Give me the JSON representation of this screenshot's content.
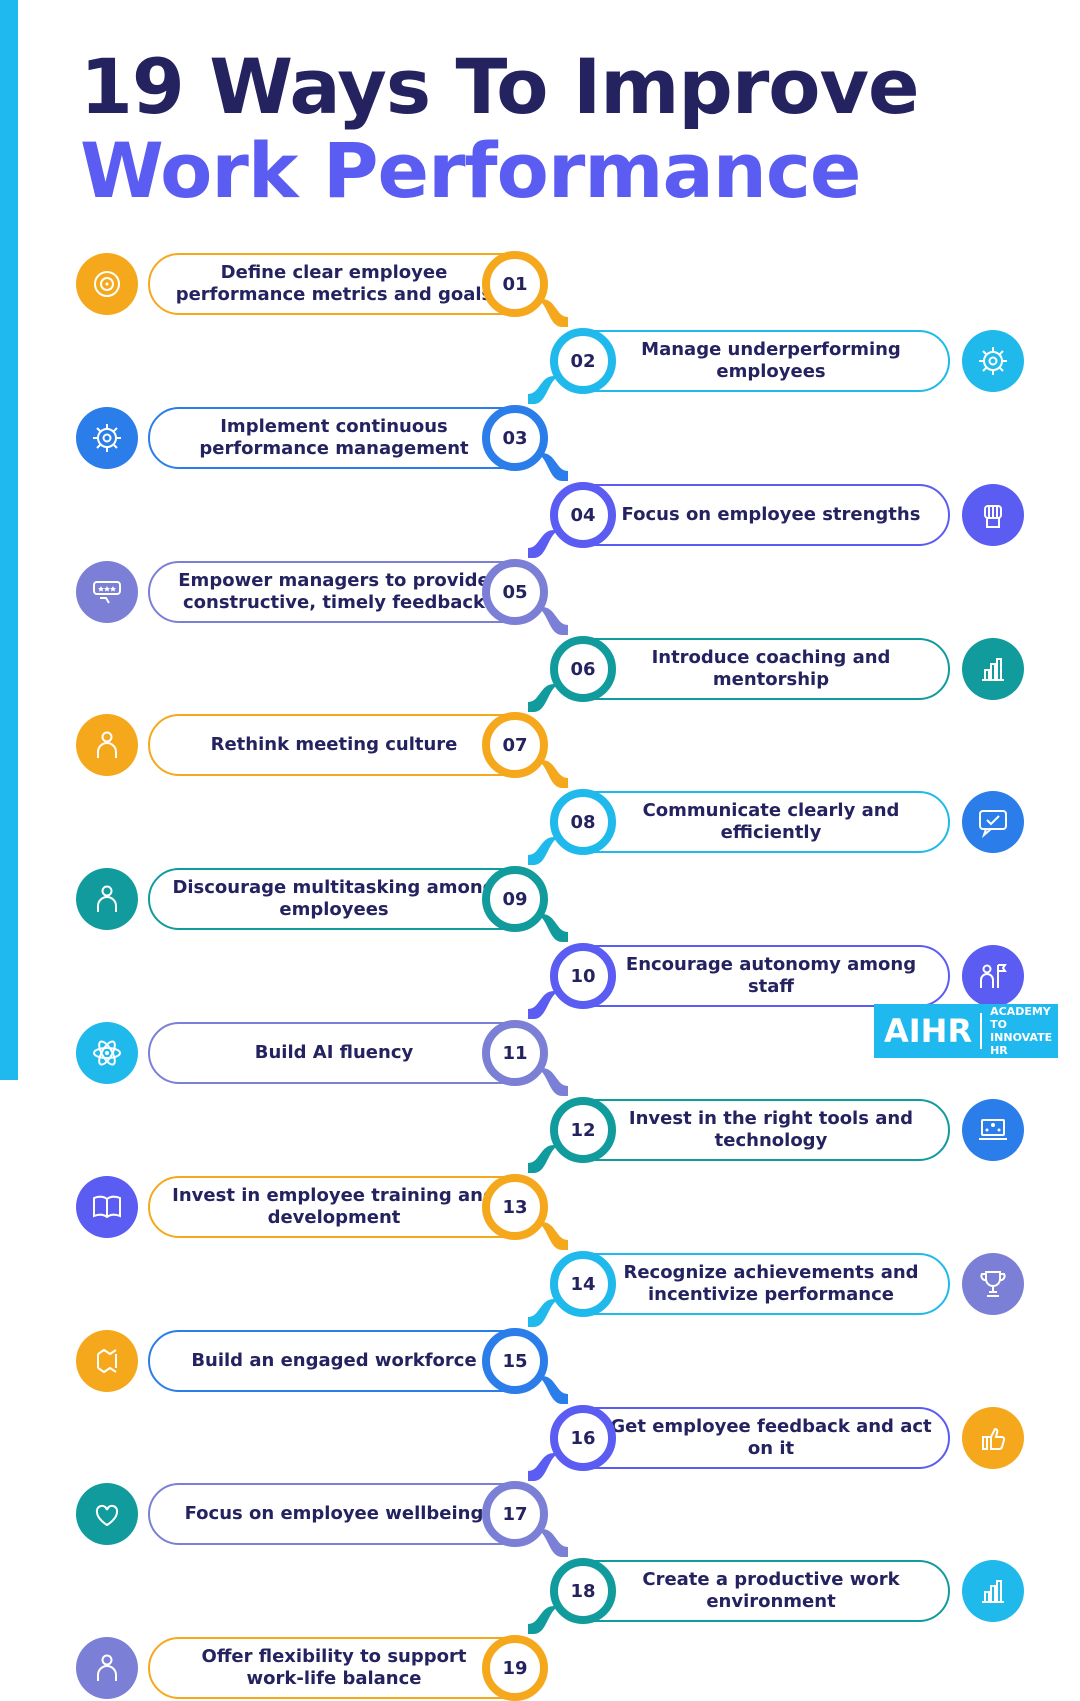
{
  "title": {
    "line1": "19 Ways To Improve",
    "line2": "Work Performance"
  },
  "items": [
    {
      "num": "01",
      "text": "Define clear employee performance metrics and goals",
      "color": "#f6a81d",
      "icon": "target-icon"
    },
    {
      "num": "02",
      "text": "Manage underperforming employees",
      "color": "#20b9ec",
      "icon": "gear-person-icon"
    },
    {
      "num": "03",
      "text": "Implement continuous performance management",
      "color": "#2b7de9",
      "icon": "gear-chart-icon"
    },
    {
      "num": "04",
      "text": "Focus on employee strengths",
      "color": "#5a5cf2",
      "icon": "fist-icon"
    },
    {
      "num": "05",
      "text": "Empower managers to provide constructive, timely feedback",
      "color": "#7b80d6",
      "icon": "rating-feedback-icon"
    },
    {
      "num": "06",
      "text": "Introduce coaching and mentorship",
      "color": "#129b9d",
      "icon": "coaching-stairs-icon"
    },
    {
      "num": "07",
      "text": "Rethink meeting culture",
      "color": "#f6a81d",
      "icon": "meeting-table-icon"
    },
    {
      "num": "08",
      "text": "Communicate clearly and efficiently",
      "color": "#20b9ec",
      "icon": "chat-check-icon"
    },
    {
      "num": "09",
      "text": "Discourage multitasking among employees",
      "color": "#129b9d",
      "icon": "multitask-person-icon"
    },
    {
      "num": "10",
      "text": "Encourage autonomy among staff",
      "color": "#5a5cf2",
      "icon": "person-flag-icon"
    },
    {
      "num": "11",
      "text": "Build AI fluency",
      "color": "#7b80d6",
      "icon": "atom-icon"
    },
    {
      "num": "12",
      "text": "Invest in the right tools and technology",
      "color": "#129b9d",
      "icon": "laptop-network-icon"
    },
    {
      "num": "13",
      "text": "Invest in employee training and development",
      "color": "#f6a81d",
      "icon": "book-icon"
    },
    {
      "num": "14",
      "text": "Recognize achievements and incentivize performance",
      "color": "#20b9ec",
      "icon": "trophy-icon"
    },
    {
      "num": "15",
      "text": "Build an engaged workforce",
      "color": "#2b7de9",
      "icon": "hands-together-icon"
    },
    {
      "num": "16",
      "text": "Get employee feedback and act on it",
      "color": "#5a5cf2",
      "icon": "thumbs-up-cycle-icon"
    },
    {
      "num": "17",
      "text": "Focus on employee wellbeing",
      "color": "#7b80d6",
      "icon": "heart-hands-icon"
    },
    {
      "num": "18",
      "text": "Create a productive work environment",
      "color": "#129b9d",
      "icon": "hand-chart-icon"
    },
    {
      "num": "19",
      "text": "Offer flexibility to support work-life balance",
      "color": "#f6a81d",
      "icon": "flexibility-person-icon"
    }
  ],
  "iconColors": [
    "#f6a81d",
    "#20b9ec",
    "#2b7de9",
    "#5a5cf2",
    "#7b80d6",
    "#129b9d",
    "#f6a81d",
    "#2b7de9",
    "#129b9d",
    "#5a5cf2",
    "#20b9ec",
    "#2b7de9",
    "#5a5cf2",
    "#7b80d6",
    "#f6a81d",
    "#f6a81d",
    "#129b9d",
    "#20b9ec",
    "#7b80d6"
  ],
  "logo": {
    "main": "AIHR",
    "sub": "ACADEMY TO INNOVATE HR"
  }
}
